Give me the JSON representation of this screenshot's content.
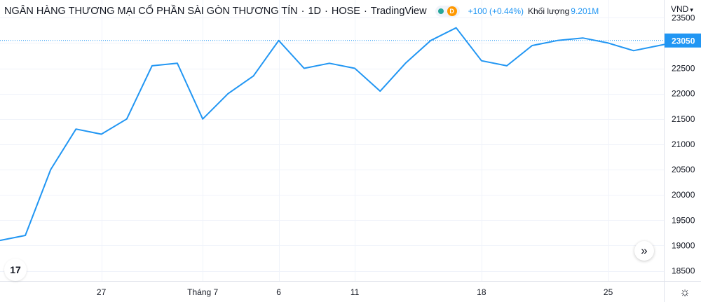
{
  "legend": {
    "symbol": "NGÂN HÀNG THƯƠNG MẠI CỔ PHẦN SÀI GÒN THƯƠNG TÍN",
    "separator": "·",
    "interval": "1D",
    "exchange": "HOSE",
    "source": "TradingView",
    "status_badge": "D",
    "change": "+100 (+0.44%)",
    "volume_label": "Khối lượng",
    "volume_value": "9.201M"
  },
  "price_scale": {
    "currency": "VND",
    "caret": "▾",
    "last_price": "23050"
  },
  "icons": {
    "tv_logo": "17",
    "scroll_to_realtime": "»",
    "settings": "☼"
  },
  "colors": {
    "line": "#2196f3",
    "last_price_label_bg": "#2196f3",
    "grid": "#f0f3fa",
    "text": "#131722",
    "accent": "#2196f3",
    "status_green": "#26a69a",
    "status_orange": "#ff9800"
  },
  "chart_data": {
    "type": "line",
    "title": "NGÂN HÀNG THƯƠNG MẠI CỔ PHẦN SÀI GÒN THƯƠNG TÍN",
    "xlabel": "",
    "ylabel": "",
    "ylim": [
      18300,
      23850
    ],
    "y_ticks": [
      18500,
      19000,
      19500,
      20000,
      20500,
      21000,
      21500,
      22000,
      22500,
      23000,
      23500
    ],
    "x_ticks": [
      {
        "index": 4,
        "label": "27"
      },
      {
        "index": 8,
        "label": "Tháng 7"
      },
      {
        "index": 11,
        "label": "6"
      },
      {
        "index": 14,
        "label": "11"
      },
      {
        "index": 19,
        "label": "18"
      },
      {
        "index": 24,
        "label": "25"
      }
    ],
    "grid": true,
    "series": [
      {
        "values": [
          19100,
          19200,
          20500,
          21300,
          21200,
          21500,
          22550,
          22600,
          21500,
          22000,
          22350,
          23050,
          22500,
          22600,
          22500,
          22050,
          22600,
          23050,
          23300,
          22650,
          22550,
          22950,
          23050,
          23100,
          23000,
          22850,
          22950,
          23050
        ]
      }
    ],
    "last_value": 23050
  }
}
